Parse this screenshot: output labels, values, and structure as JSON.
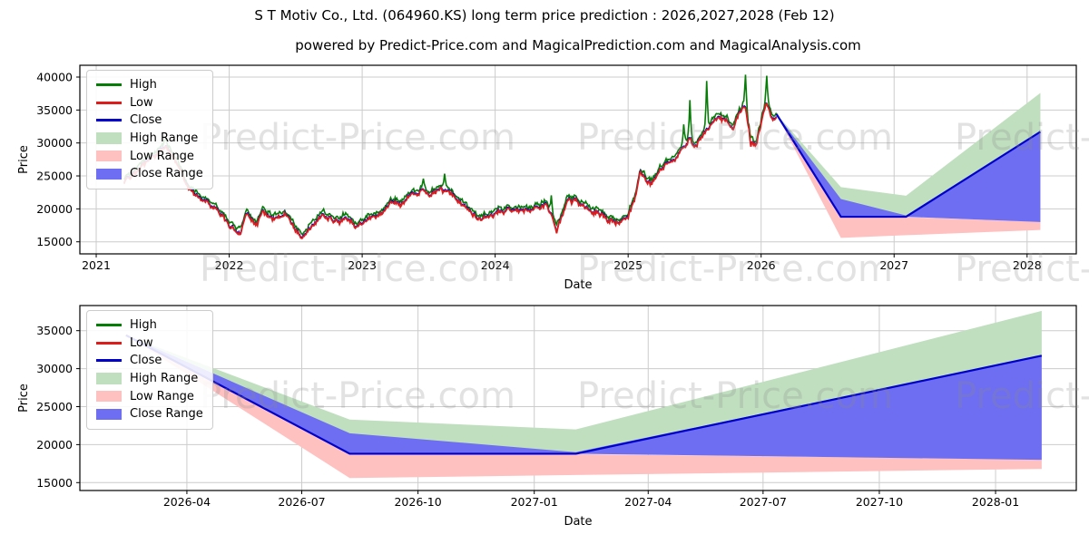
{
  "title": "S T Motiv Co., Ltd. (064960.KS) long term price prediction : 2026,2027,2028 (Feb 12)",
  "subtitle": "powered by Predict-Price.com and MagicalPrediction.com and MagicalAnalysis.com",
  "watermark": {
    "text": "Predict-Price.com"
  },
  "colors": {
    "high": "#067d06",
    "low": "#dd1c1c",
    "close": "#0000cd",
    "high_range": "#bfdfbf",
    "low_range": "#ffc0c0",
    "close_range": "#6e6ef2",
    "grid": "#cccccc",
    "axis": "#000000",
    "watermark": "rgba(140,140,140,0.25)"
  },
  "legend": {
    "items": [
      {
        "label": "High",
        "type": "line",
        "color_key": "high"
      },
      {
        "label": "Low",
        "type": "line",
        "color_key": "low"
      },
      {
        "label": "Close",
        "type": "line",
        "color_key": "close"
      },
      {
        "label": "High Range",
        "type": "patch",
        "color_key": "high_range"
      },
      {
        "label": "Low Range",
        "type": "patch",
        "color_key": "low_range"
      },
      {
        "label": "Close Range",
        "type": "patch",
        "color_key": "close_range"
      }
    ]
  },
  "chart_data": [
    {
      "type": "line",
      "name": "long-term-history-and-prediction",
      "xlabel": "Date",
      "ylabel": "Price",
      "grid": true,
      "legend_position": "upper-left",
      "x_range": [
        2020.877,
        2028.37
      ],
      "y_range": [
        13170,
        41790
      ],
      "x_ticks": [
        {
          "t": 2021,
          "label": "2021"
        },
        {
          "t": 2022,
          "label": "2022"
        },
        {
          "t": 2023,
          "label": "2023"
        },
        {
          "t": 2024,
          "label": "2024"
        },
        {
          "t": 2025,
          "label": "2025"
        },
        {
          "t": 2026,
          "label": "2026"
        },
        {
          "t": 2027,
          "label": "2027"
        },
        {
          "t": 2028,
          "label": "2028"
        }
      ],
      "y_ticks": [
        {
          "v": 15000,
          "label": "15000"
        },
        {
          "v": 20000,
          "label": "20000"
        },
        {
          "v": 25000,
          "label": "25000"
        },
        {
          "v": 30000,
          "label": "30000"
        },
        {
          "v": 35000,
          "label": "35000"
        },
        {
          "v": 40000,
          "label": "40000"
        }
      ],
      "history": {
        "t": [
          2021.21,
          2021.3,
          2021.38,
          2021.46,
          2021.52,
          2021.56,
          2021.62,
          2021.67,
          2021.71,
          2021.79,
          2021.88,
          2021.96,
          2022.04,
          2022.09,
          2022.13,
          2022.21,
          2022.25,
          2022.33,
          2022.42,
          2022.5,
          2022.55,
          2022.63,
          2022.71,
          2022.79,
          2022.88,
          2022.96,
          2023.04,
          2023.13,
          2023.21,
          2023.29,
          2023.38,
          2023.46,
          2023.5,
          2023.58,
          2023.63,
          2023.71,
          2023.79,
          2023.88,
          2023.96,
          2024.04,
          2024.13,
          2024.21,
          2024.29,
          2024.38,
          2024.42,
          2024.46,
          2024.5,
          2024.54,
          2024.58,
          2024.67,
          2024.75,
          2024.83,
          2024.92,
          2025.0,
          2025.05,
          2025.09,
          2025.17,
          2025.25,
          2025.33,
          2025.42,
          2025.46,
          2025.5,
          2025.58,
          2025.67,
          2025.75,
          2025.79,
          2025.83,
          2025.88,
          2025.92,
          2025.96,
          2026.0,
          2026.04,
          2026.08,
          2026.115
        ],
        "mid": [
          24600,
          26200,
          27200,
          29400,
          30300,
          29100,
          26200,
          23600,
          22100,
          21400,
          20100,
          18900,
          17900,
          17100,
          19100,
          18100,
          19300,
          18100,
          18900,
          17000,
          16500,
          18700,
          19900,
          18200,
          18900,
          18400,
          18800,
          19500,
          21500,
          21000,
          22500,
          23400,
          22500,
          23900,
          23300,
          22000,
          20200,
          19300,
          19900,
          20100,
          19800,
          20300,
          20600,
          21300,
          20400,
          18000,
          19700,
          22000,
          21600,
          20800,
          19900,
          19200,
          18600,
          19000,
          21800,
          25900,
          24300,
          26400,
          27700,
          29900,
          31300,
          29400,
          31900,
          33700,
          33100,
          31900,
          34600,
          35900,
          31000,
          29800,
          33600,
          36300,
          33900,
          34200
        ],
        "spikes_high": [
          {
            "t": 2021.52,
            "d": 700
          },
          {
            "t": 2022.71,
            "d": 500
          },
          {
            "t": 2023.46,
            "d": 800
          },
          {
            "t": 2023.62,
            "d": 2200
          },
          {
            "t": 2024.42,
            "d": 2300
          },
          {
            "t": 2025.42,
            "d": 3200
          },
          {
            "t": 2025.465,
            "d": 5100
          },
          {
            "t": 2025.59,
            "d": 6800
          },
          {
            "t": 2025.88,
            "d": 4500
          },
          {
            "t": 2026.045,
            "d": 4000
          }
        ],
        "spikes_low": [
          {
            "t": 2022.08,
            "d": -600
          },
          {
            "t": 2022.54,
            "d": -500
          },
          {
            "t": 2024.46,
            "d": -700
          },
          {
            "t": 2025.92,
            "d": -900
          }
        ]
      },
      "prediction": {
        "t": [
          2026.115,
          2026.6,
          2027.09,
          2028.1
        ],
        "close": [
          34400,
          18800,
          18800,
          31700
        ],
        "close_band_top": [
          34400,
          21500,
          19000,
          31700
        ],
        "close_band_bottom": [
          34400,
          18800,
          18800,
          18000
        ],
        "high_band_top": [
          34400,
          23300,
          22000,
          37600
        ],
        "low_band_top": [
          34400,
          18800,
          18750,
          18050
        ],
        "low_band_bottom": [
          34400,
          15600,
          16000,
          16800
        ]
      }
    },
    {
      "type": "line",
      "name": "prediction-detail-2026-2028",
      "xlabel": "Date",
      "ylabel": "Price",
      "grid": true,
      "legend_position": "upper-left",
      "x_range": [
        2026.015,
        2028.175
      ],
      "y_range": [
        13961,
        38305
      ],
      "x_ticks": [
        {
          "t": 2026.247,
          "label": "2026-04"
        },
        {
          "t": 2026.496,
          "label": "2026-07"
        },
        {
          "t": 2026.748,
          "label": "2026-10"
        },
        {
          "t": 2027.0,
          "label": "2027-01"
        },
        {
          "t": 2027.247,
          "label": "2027-04"
        },
        {
          "t": 2027.496,
          "label": "2027-07"
        },
        {
          "t": 2027.748,
          "label": "2027-10"
        },
        {
          "t": 2028.0,
          "label": "2028-01"
        }
      ],
      "y_ticks": [
        {
          "v": 15000,
          "label": "15000"
        },
        {
          "v": 20000,
          "label": "20000"
        },
        {
          "v": 25000,
          "label": "25000"
        },
        {
          "v": 30000,
          "label": "30000"
        },
        {
          "v": 35000,
          "label": "35000"
        }
      ],
      "prediction": {
        "t": [
          2026.115,
          2026.6,
          2027.09,
          2028.1
        ],
        "close": [
          34400,
          18800,
          18800,
          31700
        ],
        "close_band_top": [
          34400,
          21500,
          19000,
          31700
        ],
        "close_band_bottom": [
          34400,
          18800,
          18800,
          18000
        ],
        "high_band_top": [
          34400,
          23300,
          22000,
          37600
        ],
        "low_band_top": [
          34400,
          18800,
          18750,
          18050
        ],
        "low_band_bottom": [
          34400,
          15600,
          16000,
          16800
        ]
      }
    }
  ]
}
